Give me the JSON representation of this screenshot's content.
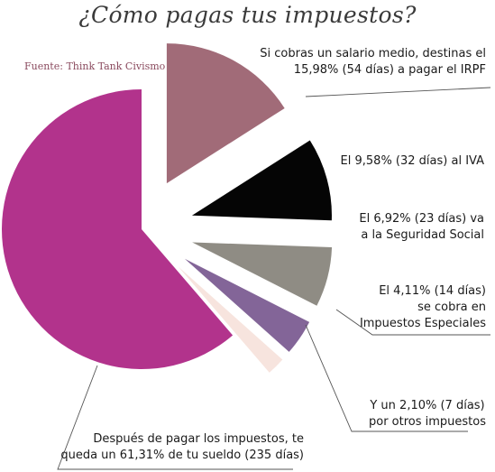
{
  "title": "¿Cómo pagas tus impuestos?",
  "source": "Fuente: Think Tank Civismo",
  "chart_data": {
    "type": "pie",
    "title": "¿Cómo pagas tus impuestos?",
    "slices": [
      {
        "key": "irpf",
        "value": 15.98,
        "days": 54,
        "color": "#a16b78",
        "exploded": true
      },
      {
        "key": "iva",
        "value": 9.58,
        "days": 32,
        "color": "#050505",
        "exploded": true
      },
      {
        "key": "seguridad_social",
        "value": 6.92,
        "days": 23,
        "color": "#8f8c84",
        "exploded": true
      },
      {
        "key": "impuestos_especiales",
        "value": 4.11,
        "days": 14,
        "color": "#836598",
        "exploded": true
      },
      {
        "key": "otros",
        "value": 2.1,
        "days": 7,
        "color": "#f7e4de",
        "exploded": true
      },
      {
        "key": "sueldo",
        "value": 61.31,
        "days": 235,
        "color": "#b2338c",
        "exploded": false
      }
    ],
    "annotations": {
      "irpf": [
        "Si cobras un salario medio, destinas el",
        "15,98% (54 días) a pagar el IRPF"
      ],
      "iva": [
        "El 9,58% (32 días) al IVA"
      ],
      "seguridad_social": [
        "El 6,92% (23 días) va",
        "a la Seguridad Social"
      ],
      "impuestos_especiales": [
        "El 4,11% (14 días)",
        "se cobra en",
        "Impuestos Especiales"
      ],
      "otros": [
        "Y un 2,10% (7 días)",
        "por otros impuestos"
      ],
      "sueldo": [
        "Después de pagar los impuestos, te",
        "queda un 61,31% de tu sueldo (235 días)"
      ]
    },
    "legend": "none",
    "grid": false
  }
}
